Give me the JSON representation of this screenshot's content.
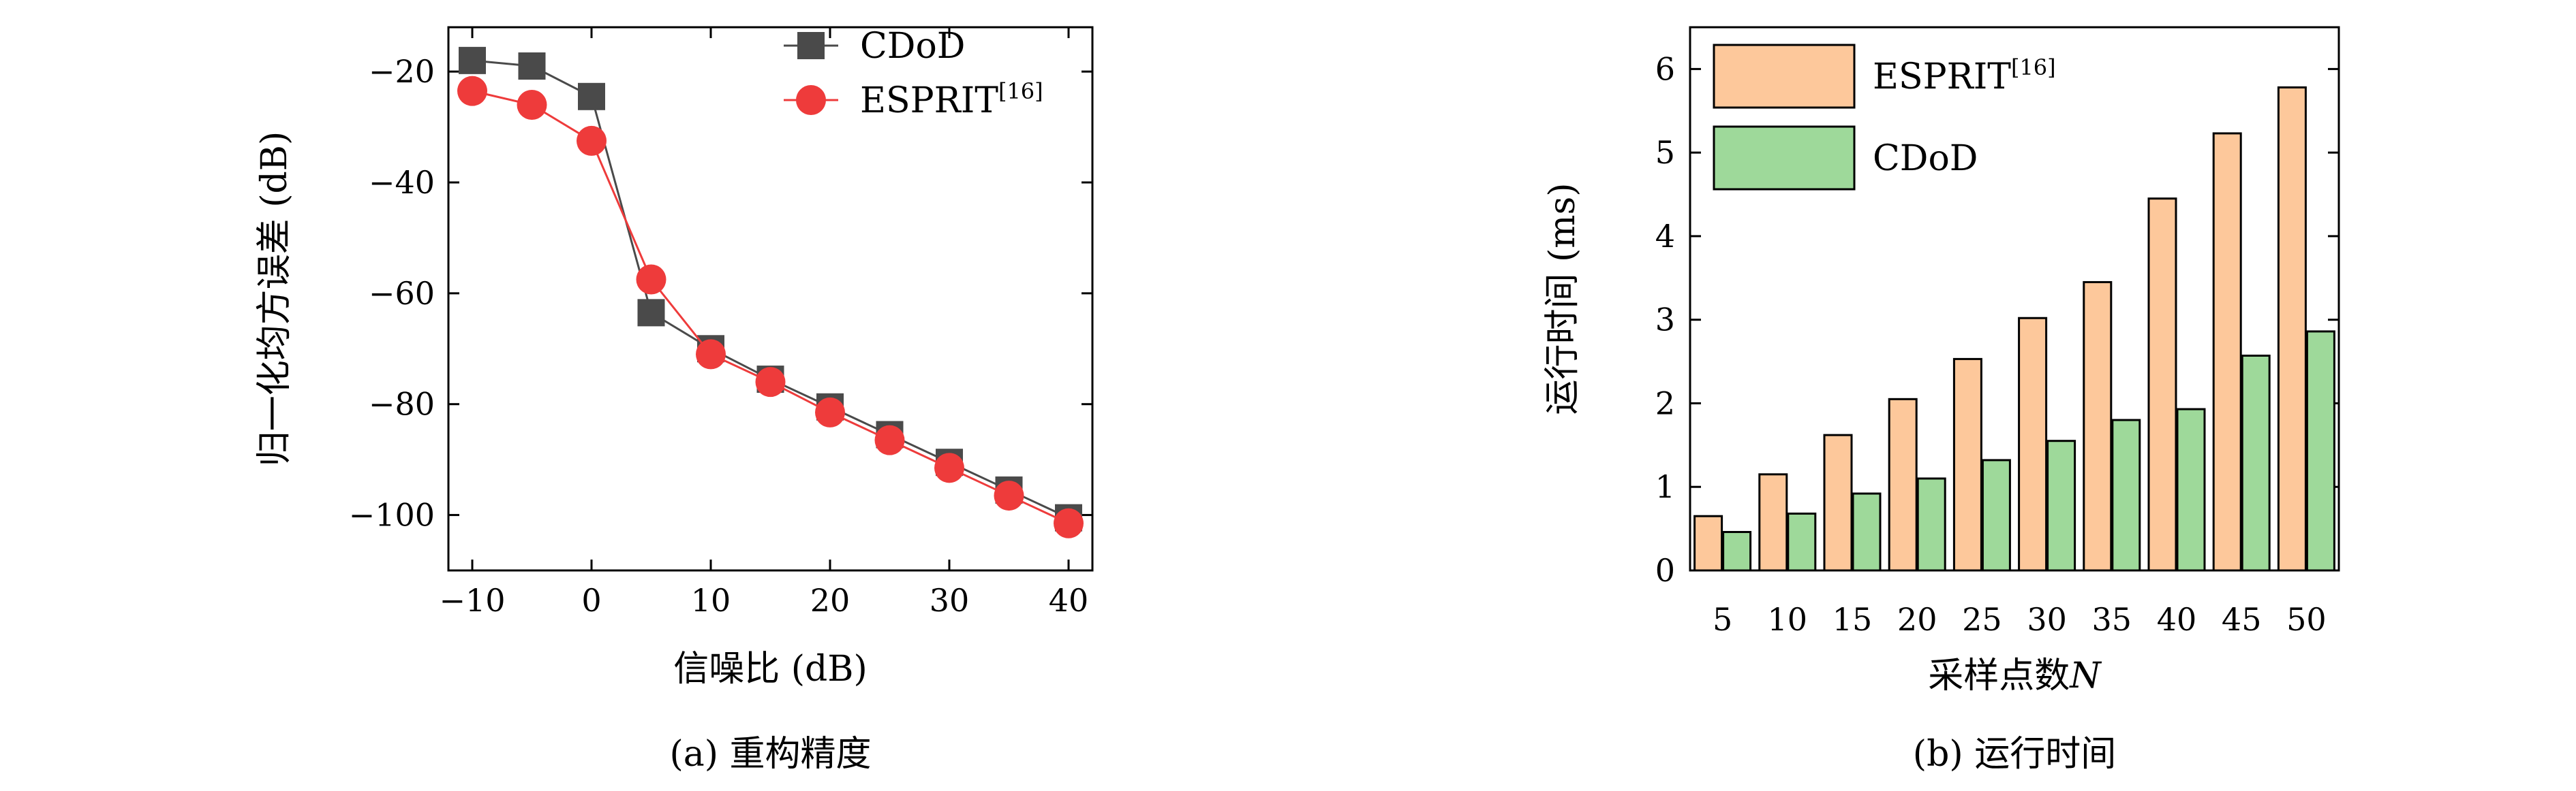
{
  "chart_data": [
    {
      "type": "line",
      "caption": "(a) 重构精度",
      "xlabel": "信噪比 (dB)",
      "ylabel": "归一化均方误差 (dB)",
      "xlim": [
        -12,
        42
      ],
      "ylim": [
        -110,
        -12
      ],
      "xticks": [
        -10,
        0,
        10,
        20,
        30,
        40
      ],
      "xtick_labels": [
        "−10",
        "0",
        "10",
        "20",
        "30",
        "40"
      ],
      "yticks": [
        -20,
        -40,
        -60,
        -80,
        -100
      ],
      "ytick_labels": [
        "−20",
        "−40",
        "−60",
        "−80",
        "−100"
      ],
      "grid": false,
      "legend_position": "top-right",
      "x": [
        -10,
        -5,
        0,
        5,
        10,
        15,
        20,
        25,
        30,
        35,
        40
      ],
      "series": [
        {
          "name": "CDoD",
          "color": "#4a4a4a",
          "marker": "square",
          "values": [
            -18,
            -19,
            -24.5,
            -63.5,
            -70,
            -75.5,
            -80.5,
            -85.5,
            -90.5,
            -95.5,
            -100.5
          ]
        },
        {
          "name": "ESPRIT",
          "name_sup": "[16]",
          "color": "#ee3b3b",
          "marker": "circle",
          "values": [
            -23.5,
            -26,
            -32.5,
            -57.5,
            -71,
            -76,
            -81.5,
            -86.5,
            -91.5,
            -96.5,
            -101.5
          ]
        }
      ]
    },
    {
      "type": "bar",
      "caption": "(b) 运行时间",
      "xlabel": "采样点数",
      "xlabel_italic": "N",
      "ylabel": "运行时间 (ms)",
      "ylim": [
        0,
        6.5
      ],
      "yticks": [
        0,
        1,
        2,
        3,
        4,
        5,
        6
      ],
      "ytick_labels": [
        "0",
        "1",
        "2",
        "3",
        "4",
        "5",
        "6"
      ],
      "categories": [
        "5",
        "10",
        "15",
        "20",
        "25",
        "30",
        "35",
        "40",
        "45",
        "50"
      ],
      "grid": false,
      "legend_position": "top-left",
      "series": [
        {
          "name": "ESPRIT",
          "name_sup": "[16]",
          "color": "#fdc89b",
          "values": [
            0.65,
            1.15,
            1.62,
            2.05,
            2.53,
            3.02,
            3.45,
            4.45,
            5.23,
            5.78
          ]
        },
        {
          "name": "CDoD",
          "color": "#9ed99a",
          "values": [
            0.46,
            0.68,
            0.92,
            1.1,
            1.32,
            1.55,
            1.8,
            1.93,
            2.57,
            2.86
          ]
        }
      ]
    }
  ]
}
